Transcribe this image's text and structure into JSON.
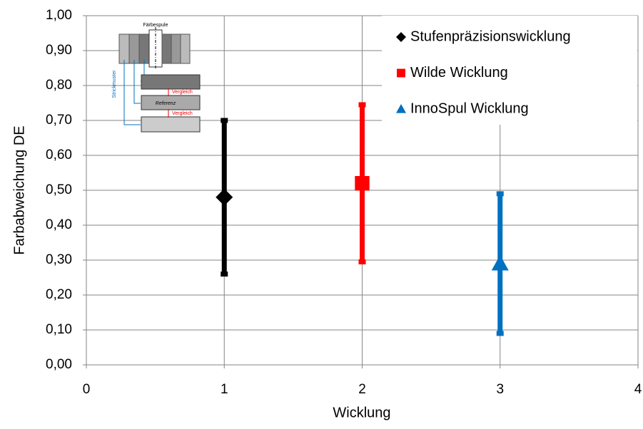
{
  "chart_data": {
    "type": "scatter",
    "x_label": "Wicklung",
    "y_label": "Farbabweichung DE",
    "xlim": [
      0,
      4
    ],
    "xticks": [
      0,
      1,
      2,
      3,
      4
    ],
    "ylim": [
      0,
      1
    ],
    "yticks": [
      {
        "value": 0,
        "label": "0,00"
      },
      {
        "value": 0.1,
        "label": "0,10"
      },
      {
        "value": 0.2,
        "label": "0,20"
      },
      {
        "value": 0.3,
        "label": "0,30"
      },
      {
        "value": 0.4,
        "label": "0,40"
      },
      {
        "value": 0.5,
        "label": "0,50"
      },
      {
        "value": 0.6,
        "label": "0,60"
      },
      {
        "value": 0.7,
        "label": "0,70"
      },
      {
        "value": 0.8,
        "label": "0,80"
      },
      {
        "value": 0.9,
        "label": "0,90"
      },
      {
        "value": 1,
        "label": "1,00"
      }
    ],
    "grid": true,
    "legend": "top-right",
    "series": [
      {
        "name": "Stufenpräzisionswicklung",
        "color": "#000000",
        "marker": "diamond",
        "x": [
          1
        ],
        "values": [
          0.48
        ],
        "errors": [
          0.22
        ]
      },
      {
        "name": "Wilde Wicklung",
        "color": "#ff0000",
        "marker": "square",
        "x": [
          2
        ],
        "values": [
          0.52
        ],
        "errors": [
          0.225
        ]
      },
      {
        "name": "InnoSpul Wicklung",
        "color": "#0070c0",
        "marker": "triangle",
        "x": [
          3
        ],
        "values": [
          0.29
        ],
        "errors": [
          0.2
        ]
      }
    ],
    "inset": {
      "spool": "Färbespule",
      "pattern": "Strickmuster",
      "compare_top": "Vergleich",
      "reference": "Referenz",
      "compare_bottom": "Vergleich"
    }
  }
}
